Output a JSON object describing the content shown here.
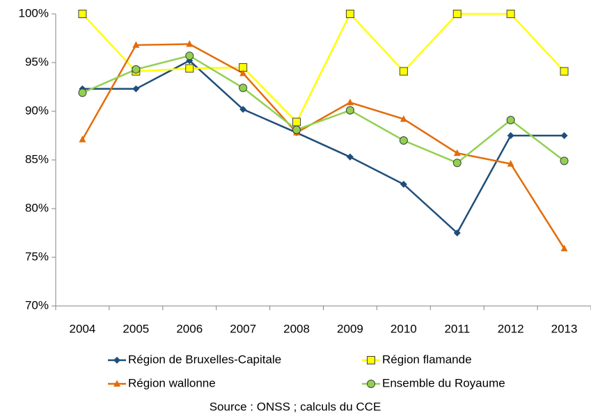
{
  "chart_data": {
    "type": "line",
    "categories": [
      "2004",
      "2005",
      "2006",
      "2007",
      "2008",
      "2009",
      "2010",
      "2011",
      "2012",
      "2013"
    ],
    "series": [
      {
        "name": "Région de Bruxelles-Capitale",
        "color": "#1f4e79",
        "marker": "diamond",
        "values": [
          92.3,
          92.3,
          95.2,
          90.2,
          87.8,
          85.3,
          82.5,
          77.5,
          87.5,
          87.5
        ]
      },
      {
        "name": "Région flamande",
        "color": "#ffff00",
        "marker": "square",
        "values": [
          100,
          94.1,
          94.4,
          94.5,
          88.9,
          100,
          94.1,
          100,
          100,
          94.1
        ]
      },
      {
        "name": "Région wallonne",
        "color": "#e36c09",
        "marker": "triangle",
        "values": [
          87.1,
          96.8,
          96.9,
          93.9,
          87.8,
          90.9,
          89.2,
          85.7,
          84.6,
          75.9
        ]
      },
      {
        "name": "Ensemble du Royaume",
        "color": "#92d050",
        "marker": "circle",
        "values": [
          91.9,
          94.3,
          95.7,
          92.4,
          88.1,
          90.1,
          87.0,
          84.7,
          89.1,
          84.9
        ]
      }
    ],
    "ylim": [
      70,
      100
    ],
    "yticks": [
      {
        "value": 70,
        "label": "70%"
      },
      {
        "value": 75,
        "label": "75%"
      },
      {
        "value": 80,
        "label": "80%"
      },
      {
        "value": 85,
        "label": "85%"
      },
      {
        "value": 90,
        "label": "90%"
      },
      {
        "value": 95,
        "label": "95%"
      },
      {
        "value": 100,
        "label": "100%"
      }
    ],
    "grid": false,
    "legend": "bottom",
    "source": "Source : ONSS ; calculs du CCE"
  }
}
